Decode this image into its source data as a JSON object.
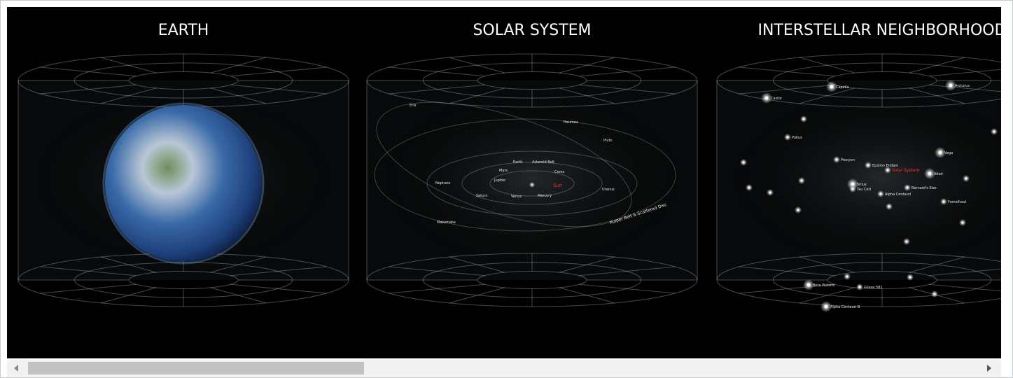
{
  "panels": [
    {
      "title": "EARTH"
    },
    {
      "title": "SOLAR SYSTEM",
      "labels": [
        "Eris",
        "Haumea",
        "Pluto",
        "Earth",
        "Asteroid Belt",
        "Mars",
        "Ceres",
        "Jupiter",
        "Sun",
        "Neptune",
        "Saturn",
        "Venus",
        "Mercury",
        "Uranus",
        "Makemake",
        "Kuiper Belt & Scattered Disc"
      ]
    },
    {
      "title": "INTERSTELLAR NEIGHBORHOOD",
      "labels": [
        "Capella",
        "Castor",
        "Pollux",
        "Procyon",
        "Sirius",
        "Vega",
        "Altair",
        "Solar System",
        "Alpha Centauri",
        "Barnard's Star",
        "Tau Ceti",
        "Epsilon Eridani",
        "Fomalhaut",
        "Arcturus",
        "Beta Pictoris",
        "Gliese 581",
        "Alpha Centauri B"
      ]
    }
  ]
}
